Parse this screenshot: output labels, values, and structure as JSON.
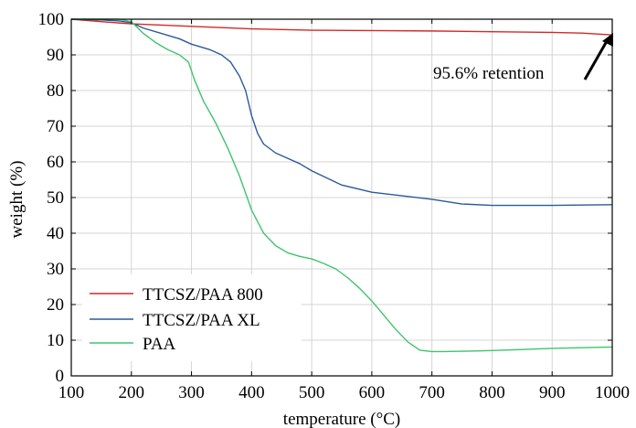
{
  "chart_data": {
    "type": "line",
    "xlabel": "temperature (°C)",
    "ylabel": "weight (%)",
    "xlim": [
      100,
      1000
    ],
    "ylim": [
      0,
      100
    ],
    "xticks": [
      100,
      200,
      300,
      400,
      500,
      600,
      700,
      800,
      900,
      1000
    ],
    "yticks": [
      0,
      10,
      20,
      30,
      40,
      50,
      60,
      70,
      80,
      90,
      100
    ],
    "grid": true,
    "legend_position": "bottom-left",
    "series": [
      {
        "name": "TTCSZ/PAA 800",
        "color": "#d62728",
        "x": [
          100,
          150,
          200,
          300,
          400,
          500,
          600,
          700,
          800,
          900,
          950,
          1000
        ],
        "y": [
          100,
          99.3,
          98.7,
          98.0,
          97.3,
          96.9,
          96.8,
          96.7,
          96.5,
          96.3,
          96.1,
          95.6
        ]
      },
      {
        "name": "TTCSZ/PAA XL",
        "color": "#2a5a9a",
        "x": [
          100,
          150,
          180,
          200,
          220,
          250,
          280,
          300,
          330,
          350,
          365,
          380,
          390,
          400,
          410,
          420,
          440,
          460,
          480,
          500,
          550,
          600,
          650,
          700,
          750,
          800,
          850,
          900,
          950,
          1000
        ],
        "y": [
          100,
          99.8,
          99.5,
          99.0,
          97.5,
          96.0,
          94.5,
          93.0,
          91.5,
          90.0,
          88.0,
          84.0,
          80.0,
          73.0,
          68.0,
          65.0,
          62.5,
          61.0,
          59.5,
          57.5,
          53.5,
          51.5,
          50.5,
          49.5,
          48.2,
          47.8,
          47.8,
          47.8,
          47.9,
          48.0
        ]
      },
      {
        "name": "PAA",
        "color": "#3ec46d",
        "x": [
          100,
          150,
          180,
          200,
          220,
          240,
          260,
          280,
          295,
          305,
          320,
          340,
          360,
          380,
          400,
          420,
          440,
          460,
          480,
          500,
          520,
          540,
          560,
          580,
          600,
          620,
          640,
          660,
          680,
          700,
          720,
          750,
          800,
          850,
          900,
          950,
          1000
        ],
        "y": [
          100,
          100,
          100,
          99.3,
          96.0,
          93.5,
          91.5,
          90.0,
          88.0,
          83.0,
          77.0,
          71.0,
          64.0,
          56.0,
          46.5,
          40.0,
          36.5,
          34.5,
          33.5,
          32.8,
          31.5,
          30.0,
          27.5,
          24.5,
          21.0,
          17.0,
          13.0,
          9.5,
          7.2,
          6.8,
          6.8,
          6.9,
          7.1,
          7.4,
          7.7,
          7.9,
          8.1
        ]
      }
    ],
    "annotations": [
      {
        "text": "95.6% retention",
        "arrow_to_x": 1000,
        "arrow_to_y": 95.6
      }
    ]
  }
}
